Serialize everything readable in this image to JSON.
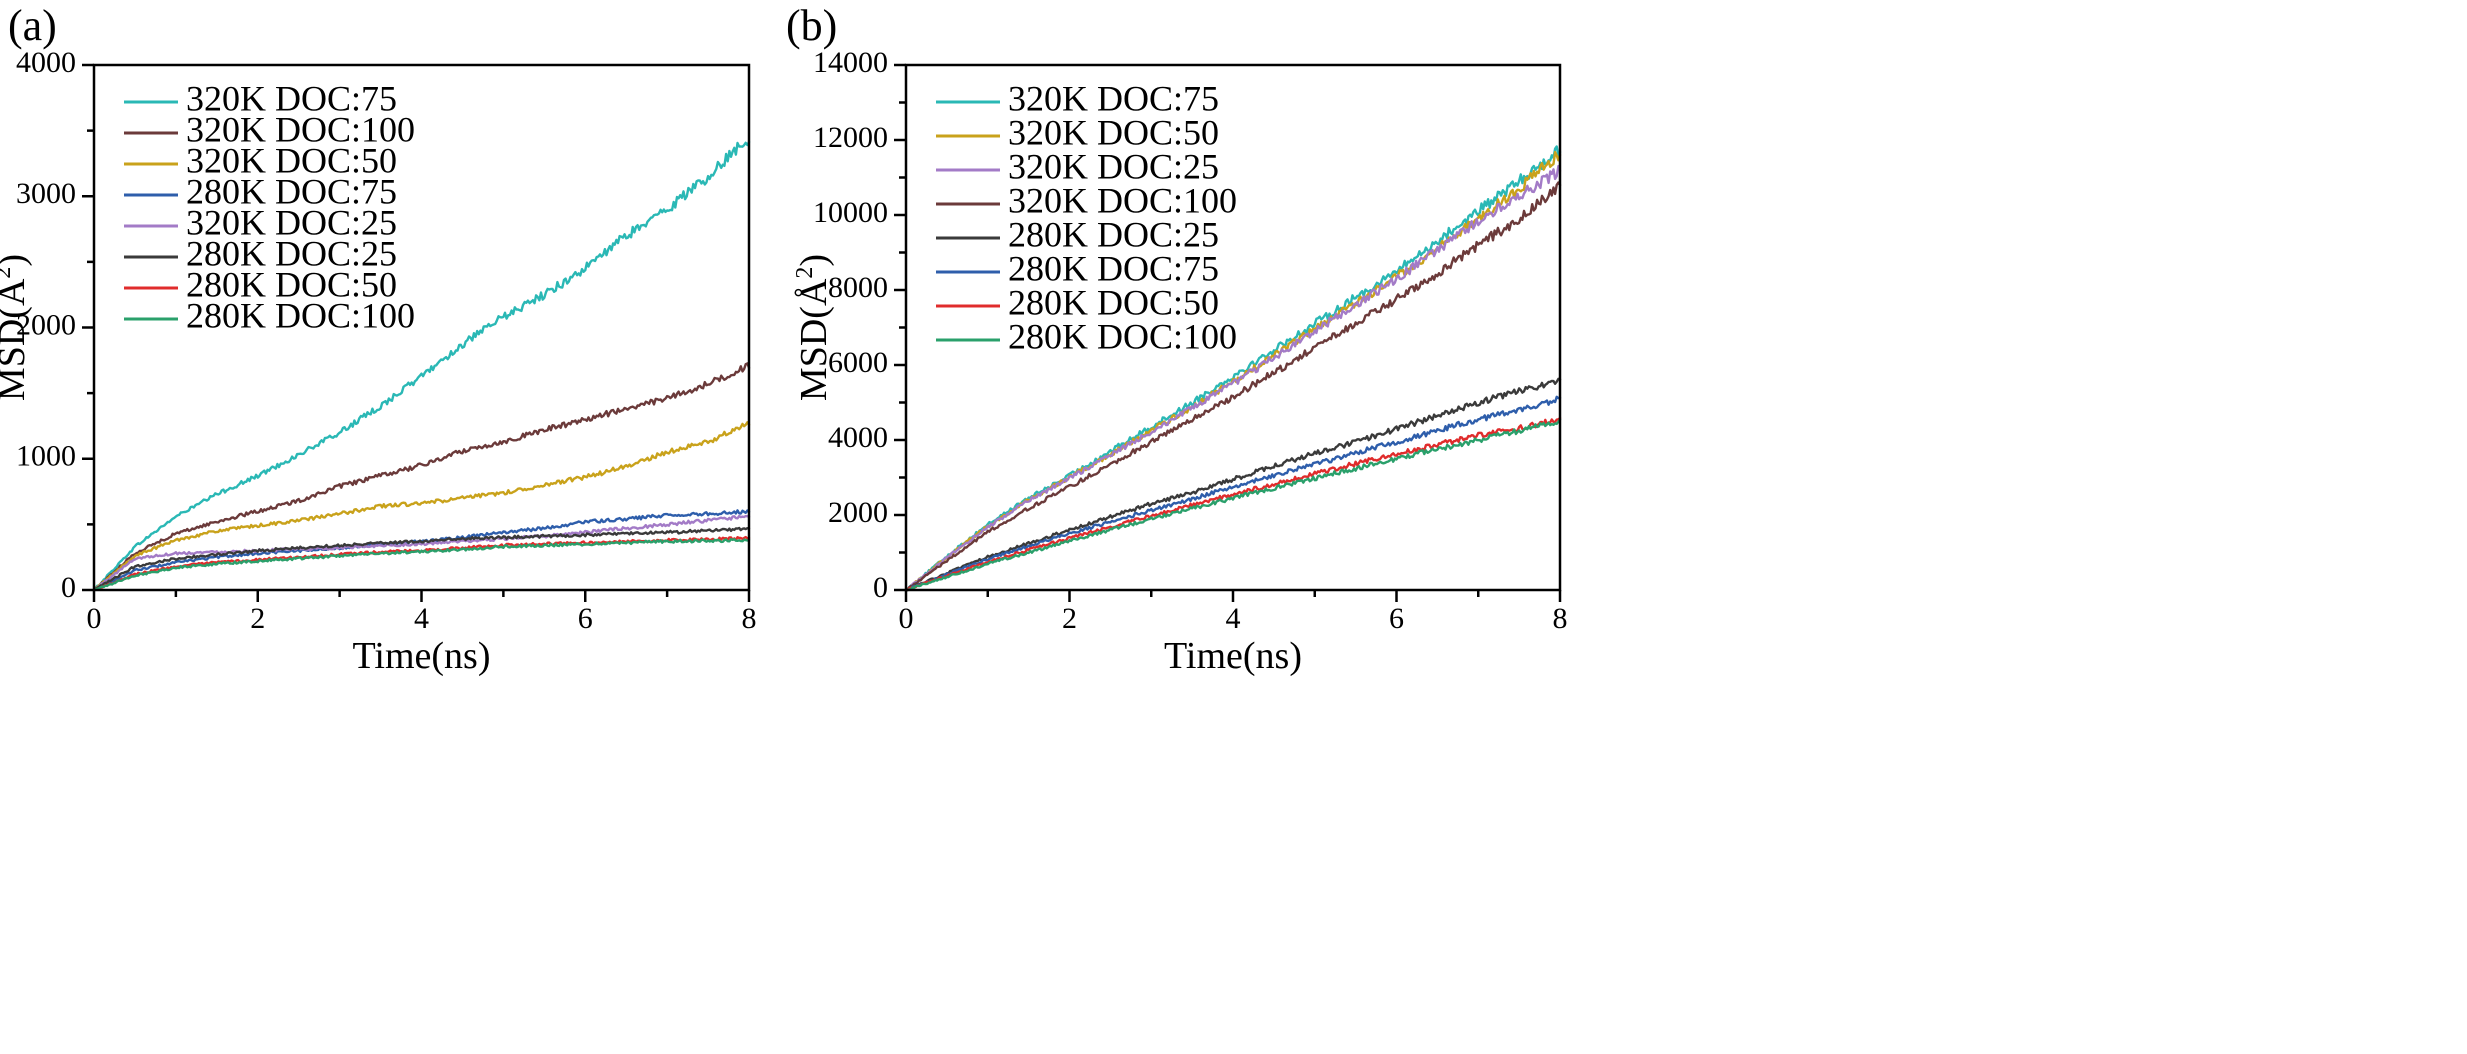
{
  "chart_data": [
    {
      "type": "line",
      "panel_label": "(a)",
      "xlabel": "Time(ns)",
      "ylabel": "MSD(Å",
      "ylabel_sup": "2",
      "ylabel_end": ")",
      "xlim": [
        0,
        8
      ],
      "ylim": [
        0,
        4000
      ],
      "xticks": [
        0,
        2,
        4,
        6,
        8
      ],
      "yticks": [
        0,
        1000,
        2000,
        3000,
        4000
      ],
      "legend_position": "top-left",
      "grid": false,
      "x": [
        0,
        0.5,
        1,
        1.5,
        2,
        2.5,
        3,
        3.5,
        4,
        4.5,
        5,
        5.5,
        6,
        6.5,
        7,
        7.5,
        8
      ],
      "series": [
        {
          "name": "320K DOC:75",
          "color": "#2ab8b5",
          "values": [
            0,
            330,
            560,
            730,
            870,
            1030,
            1200,
            1400,
            1630,
            1870,
            2080,
            2250,
            2450,
            2700,
            2900,
            3150,
            3450
          ]
        },
        {
          "name": "320K DOC:100",
          "color": "#6b3a3a",
          "values": [
            0,
            280,
            430,
            520,
            600,
            680,
            790,
            870,
            950,
            1060,
            1130,
            1220,
            1300,
            1380,
            1460,
            1570,
            1710
          ]
        },
        {
          "name": "320K DOC:50",
          "color": "#c9a21b",
          "values": [
            0,
            260,
            380,
            450,
            490,
            530,
            580,
            640,
            660,
            700,
            740,
            800,
            860,
            940,
            1050,
            1130,
            1270
          ]
        },
        {
          "name": "280K DOC:75",
          "color": "#2e5eab",
          "values": [
            0,
            150,
            210,
            250,
            280,
            300,
            320,
            350,
            370,
            400,
            440,
            470,
            520,
            540,
            570,
            580,
            600
          ]
        },
        {
          "name": "320K DOC:25",
          "color": "#a37bc7",
          "values": [
            0,
            240,
            280,
            290,
            300,
            310,
            320,
            340,
            350,
            370,
            390,
            410,
            440,
            470,
            500,
            530,
            560
          ]
        },
        {
          "name": "280K DOC:25",
          "color": "#3a3a3a",
          "values": [
            0,
            180,
            240,
            270,
            300,
            320,
            340,
            360,
            370,
            390,
            400,
            410,
            420,
            430,
            440,
            450,
            470
          ]
        },
        {
          "name": "280K DOC:50",
          "color": "#e02c2c",
          "values": [
            0,
            120,
            180,
            210,
            230,
            250,
            270,
            290,
            300,
            320,
            340,
            350,
            360,
            370,
            380,
            385,
            395
          ]
        },
        {
          "name": "280K DOC:100",
          "color": "#2aa06b",
          "values": [
            0,
            110,
            170,
            200,
            220,
            240,
            260,
            280,
            290,
            310,
            330,
            340,
            350,
            360,
            370,
            375,
            380
          ]
        }
      ]
    },
    {
      "type": "line",
      "panel_label": "(b)",
      "xlabel": "Time(ns)",
      "ylabel": "MSD(Å",
      "ylabel_sup": "2",
      "ylabel_end": ")",
      "xlim": [
        0,
        8
      ],
      "ylim": [
        0,
        14000
      ],
      "xticks": [
        0,
        2,
        4,
        6,
        8
      ],
      "yticks": [
        0,
        2000,
        4000,
        6000,
        8000,
        10000,
        12000,
        14000
      ],
      "legend_position": "top-left",
      "grid": false,
      "x": [
        0,
        0.5,
        1,
        1.5,
        2,
        2.5,
        3,
        3.5,
        4,
        4.5,
        5,
        5.5,
        6,
        6.5,
        7,
        7.5,
        8
      ],
      "series": [
        {
          "name": "320K DOC:75",
          "color": "#2ab8b5",
          "values": [
            0,
            900,
            1750,
            2450,
            3050,
            3700,
            4350,
            5000,
            5700,
            6400,
            7100,
            7800,
            8500,
            9300,
            10100,
            10900,
            11750
          ]
        },
        {
          "name": "320K DOC:50",
          "color": "#c9a21b",
          "values": [
            0,
            880,
            1700,
            2400,
            3000,
            3620,
            4250,
            4880,
            5550,
            6250,
            6950,
            7650,
            8350,
            9100,
            9900,
            10700,
            11650
          ]
        },
        {
          "name": "320K DOC:25",
          "color": "#a37bc7",
          "values": [
            0,
            860,
            1680,
            2380,
            2980,
            3600,
            4220,
            4850,
            5500,
            6200,
            6900,
            7600,
            8300,
            9050,
            9850,
            10500,
            11200
          ]
        },
        {
          "name": "320K DOC:100",
          "color": "#6b3a3a",
          "values": [
            0,
            780,
            1550,
            2180,
            2750,
            3350,
            3950,
            4550,
            5150,
            5800,
            6450,
            7100,
            7750,
            8450,
            9200,
            9900,
            10800
          ]
        },
        {
          "name": "280K DOC:25",
          "color": "#3a3a3a",
          "values": [
            0,
            450,
            880,
            1250,
            1600,
            1950,
            2300,
            2600,
            2950,
            3300,
            3650,
            3950,
            4300,
            4650,
            5000,
            5300,
            5600
          ]
        },
        {
          "name": "280K DOC:75",
          "color": "#2e5eab",
          "values": [
            0,
            420,
            820,
            1170,
            1500,
            1820,
            2130,
            2430,
            2750,
            3050,
            3350,
            3650,
            3950,
            4250,
            4550,
            4800,
            5100
          ]
        },
        {
          "name": "280K DOC:50",
          "color": "#e02c2c",
          "values": [
            0,
            380,
            750,
            1070,
            1380,
            1680,
            1980,
            2270,
            2550,
            2830,
            3100,
            3370,
            3620,
            3880,
            4120,
            4320,
            4550
          ]
        },
        {
          "name": "280K DOC:100",
          "color": "#2aa06b",
          "values": [
            0,
            350,
            700,
            1000,
            1300,
            1600,
            1900,
            2180,
            2450,
            2720,
            2980,
            3240,
            3500,
            3760,
            4000,
            4250,
            4500
          ]
        }
      ]
    }
  ]
}
